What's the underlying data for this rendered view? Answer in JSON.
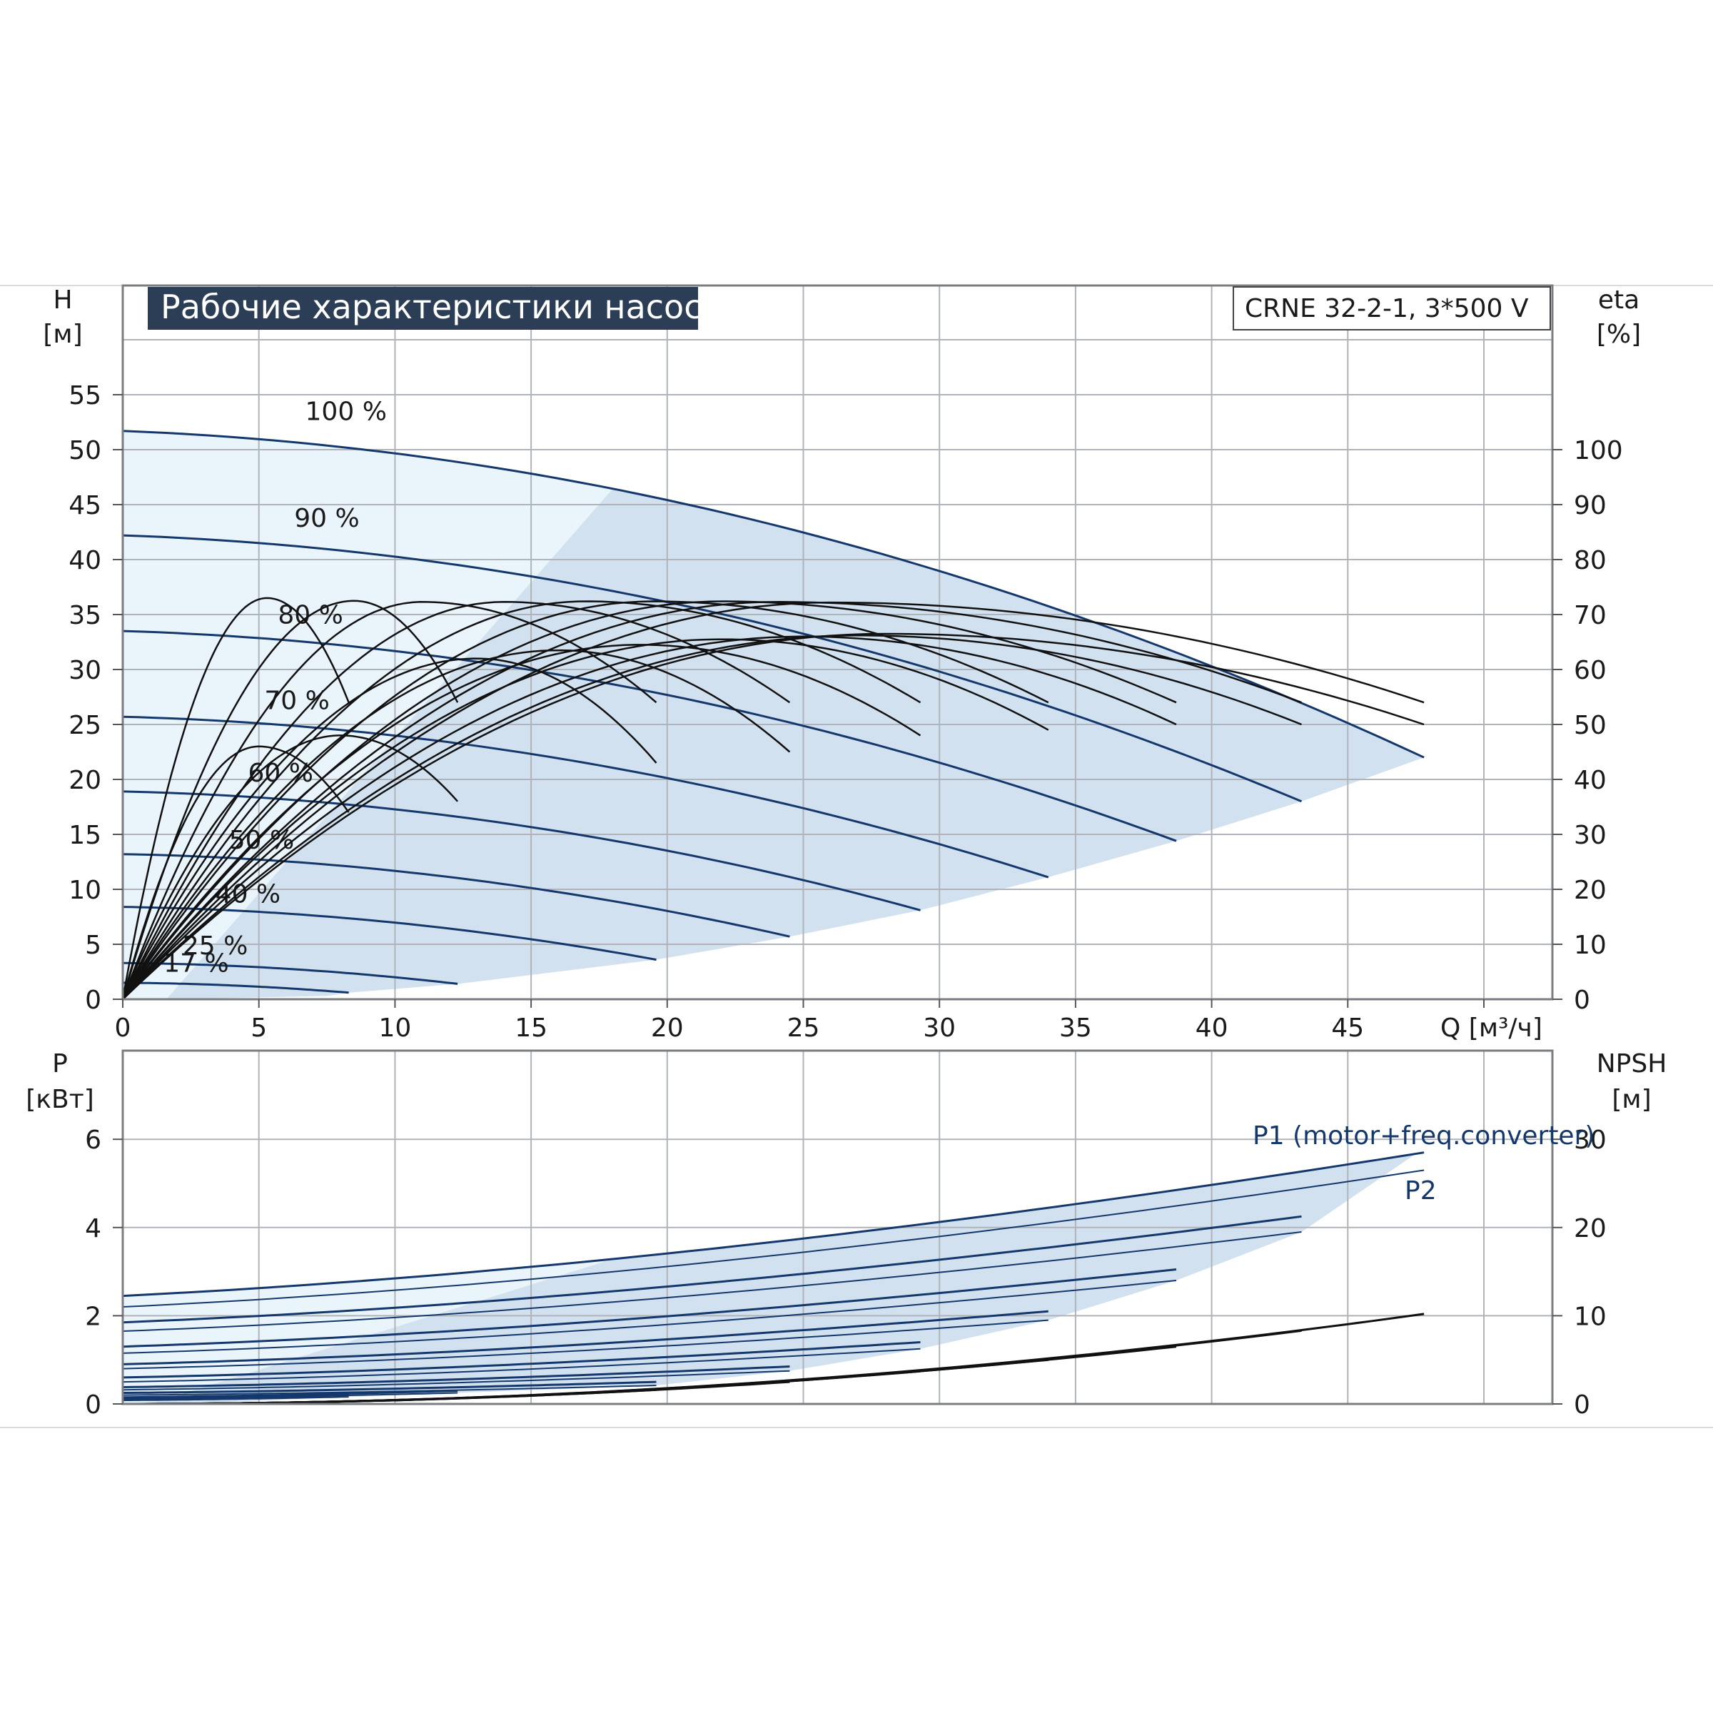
{
  "colors": {
    "curve_blue": "#14386b",
    "light_fill": "#eaf4fb",
    "region_fill": "#d2e1ef",
    "title_bg": "#2c3e55",
    "efficiency_black": "#111111",
    "grid": "#b0b4ba"
  },
  "chart_data": [
    {
      "type": "line",
      "panel": "top",
      "title": "Рабочие характеристики насоса",
      "model_label": "CRNE 32-2-1, 3*500 V",
      "xlabel": "Q [м³/ч]",
      "x_ticks": [
        "0",
        "5",
        "10",
        "15",
        "20",
        "25",
        "30",
        "35",
        "40",
        "45"
      ],
      "xlim": [
        0,
        50
      ],
      "ylabel_left": [
        "H",
        "[м]"
      ],
      "ylim_left": [
        0,
        60
      ],
      "y_ticks_left": [
        "0",
        "5",
        "10",
        "15",
        "20",
        "25",
        "30",
        "35",
        "40",
        "45",
        "50",
        "55"
      ],
      "ylabel_right": [
        "eta",
        "[%]"
      ],
      "ylim_right": [
        0,
        120
      ],
      "y_ticks_right": [
        "0",
        "10",
        "20",
        "30",
        "40",
        "50",
        "60",
        "70",
        "80",
        "90",
        "100"
      ],
      "grid": true,
      "head_curves": [
        {
          "label": "100 %",
          "h0": 51.7,
          "qmax": 47.8,
          "hend": 22.0,
          "label_q": 6.7,
          "label_h": 52.7
        },
        {
          "label": "90 %",
          "h0": 42.2,
          "qmax": 43.3,
          "hend": 18.0,
          "label_q": 6.3,
          "label_h": 43.0
        },
        {
          "label": "80 %",
          "h0": 33.5,
          "qmax": 38.7,
          "hend": 14.4,
          "label_q": 5.7,
          "label_h": 34.2
        },
        {
          "label": "70 %",
          "h0": 25.7,
          "qmax": 34.0,
          "hend": 11.1,
          "label_q": 5.2,
          "label_h": 26.4
        },
        {
          "label": "60 %",
          "h0": 18.9,
          "qmax": 29.3,
          "hend": 8.1,
          "label_q": 4.6,
          "label_h": 19.8
        },
        {
          "label": "50 %",
          "h0": 13.2,
          "qmax": 24.5,
          "hend": 5.7,
          "label_q": 3.9,
          "label_h": 13.7
        },
        {
          "label": "40 %",
          "h0": 8.4,
          "qmax": 19.6,
          "hend": 3.6,
          "label_q": 3.4,
          "label_h": 8.8
        },
        {
          "label": "25 %",
          "h0": 3.3,
          "qmax": 12.3,
          "hend": 1.4,
          "label_q": 2.2,
          "label_h": 4.1
        },
        {
          "label": "17 %",
          "h0": 1.5,
          "qmax": 8.3,
          "hend": 0.6,
          "label_q": 1.5,
          "label_h": 2.5
        }
      ],
      "efficiency_curves": [
        {
          "qmax": 47.8,
          "peak_q": 28,
          "peak_eta": 66.5,
          "end_eta": 50
        },
        {
          "qmax": 47.8,
          "peak_q": 26,
          "peak_eta": 72.2,
          "end_eta": 54
        },
        {
          "qmax": 43.3,
          "peak_q": 27,
          "peak_eta": 66.2,
          "end_eta": 50
        },
        {
          "qmax": 43.3,
          "peak_q": 24,
          "peak_eta": 72.3,
          "end_eta": 54
        },
        {
          "qmax": 38.7,
          "peak_q": 25,
          "peak_eta": 66.0,
          "end_eta": 50
        },
        {
          "qmax": 38.7,
          "peak_q": 22,
          "peak_eta": 72.4,
          "end_eta": 54
        },
        {
          "qmax": 34.0,
          "peak_q": 22,
          "peak_eta": 65.5,
          "end_eta": 49
        },
        {
          "qmax": 34.0,
          "peak_q": 19.5,
          "peak_eta": 72.4,
          "end_eta": 54
        },
        {
          "qmax": 29.3,
          "peak_q": 19,
          "peak_eta": 64.5,
          "end_eta": 48
        },
        {
          "qmax": 29.3,
          "peak_q": 17,
          "peak_eta": 72.4,
          "end_eta": 54
        },
        {
          "qmax": 24.5,
          "peak_q": 16,
          "peak_eta": 63.5,
          "end_eta": 45
        },
        {
          "qmax": 24.5,
          "peak_q": 14,
          "peak_eta": 72.3,
          "end_eta": 54
        },
        {
          "qmax": 19.6,
          "peak_q": 13,
          "peak_eta": 62.0,
          "end_eta": 43
        },
        {
          "qmax": 19.6,
          "peak_q": 11,
          "peak_eta": 72.3,
          "end_eta": 54
        },
        {
          "qmax": 12.3,
          "peak_q": 8,
          "peak_eta": 48.0,
          "end_eta": 36
        },
        {
          "qmax": 12.3,
          "peak_q": 8.5,
          "peak_eta": 72.5,
          "end_eta": 54
        },
        {
          "qmax": 8.3,
          "peak_q": 5,
          "peak_eta": 46.0,
          "end_eta": 34
        },
        {
          "qmax": 8.3,
          "peak_q": 5.3,
          "peak_eta": 73.0,
          "end_eta": 54
        }
      ]
    },
    {
      "type": "line",
      "panel": "bottom",
      "xlim": [
        0,
        50
      ],
      "ylabel_left": [
        "P",
        "[кВт]"
      ],
      "ylim_left": [
        0,
        8
      ],
      "y_ticks_left": [
        "0",
        "2",
        "4",
        "6"
      ],
      "ylabel_right": [
        "NPSH",
        "[м]"
      ],
      "ylim_right": [
        0,
        40
      ],
      "y_ticks_right": [
        "0",
        "10",
        "20",
        "30"
      ],
      "grid": true,
      "legend": [
        "P1 (motor+freq.converter)",
        "P2"
      ],
      "power_curves": [
        {
          "qmax": 47.8,
          "p1_start": 2.45,
          "p1_end": 5.7,
          "p2_start": 2.2,
          "p2_end": 5.3
        },
        {
          "qmax": 43.3,
          "p1_start": 1.85,
          "p1_end": 4.25,
          "p2_start": 1.65,
          "p2_end": 3.9
        },
        {
          "qmax": 38.7,
          "p1_start": 1.3,
          "p1_end": 3.05,
          "p2_start": 1.15,
          "p2_end": 2.8
        },
        {
          "qmax": 34.0,
          "p1_start": 0.9,
          "p1_end": 2.1,
          "p2_start": 0.8,
          "p2_end": 1.9
        },
        {
          "qmax": 29.3,
          "p1_start": 0.6,
          "p1_end": 1.4,
          "p2_start": 0.5,
          "p2_end": 1.25
        },
        {
          "qmax": 24.5,
          "p1_start": 0.38,
          "p1_end": 0.85,
          "p2_start": 0.32,
          "p2_end": 0.75
        },
        {
          "qmax": 19.6,
          "p1_start": 0.25,
          "p1_end": 0.5,
          "p2_start": 0.2,
          "p2_end": 0.42
        },
        {
          "qmax": 12.3,
          "p1_start": 0.15,
          "p1_end": 0.3,
          "p2_start": 0.12,
          "p2_end": 0.25
        },
        {
          "qmax": 8.3,
          "p1_start": 0.1,
          "p1_end": 0.2,
          "p2_start": 0.08,
          "p2_end": 0.16
        }
      ],
      "npsh_curves": [
        {
          "qmax": 47.8,
          "end": 10.2
        },
        {
          "qmax": 43.3,
          "end": 8.3
        },
        {
          "qmax": 38.7,
          "end": 6.5
        },
        {
          "qmax": 34.0,
          "end": 5.0
        },
        {
          "qmax": 29.3,
          "end": 3.7
        },
        {
          "qmax": 24.5,
          "end": 2.5
        },
        {
          "qmax": 19.6,
          "end": 1.6
        }
      ]
    }
  ]
}
